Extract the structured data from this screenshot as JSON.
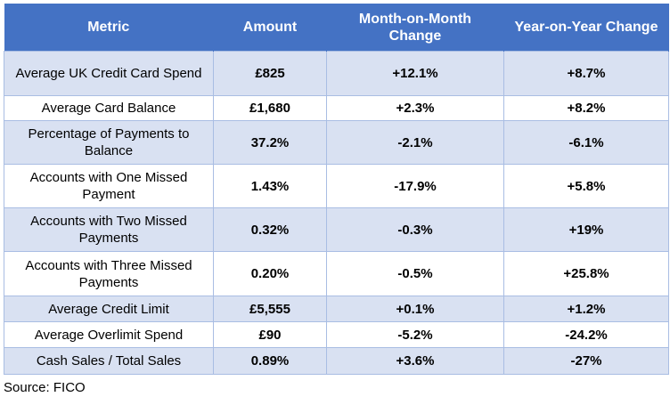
{
  "table": {
    "headers": [
      "Metric",
      "Amount",
      "Month-on-Month Change",
      "Year-on-Year Change"
    ],
    "rows": [
      [
        "Average UK Credit Card Spend",
        "£825",
        "+12.1%",
        "+8.7%"
      ],
      [
        "Average Card Balance",
        "£1,680",
        "+2.3%",
        "+8.2%"
      ],
      [
        "Percentage of Payments to Balance",
        "37.2%",
        "-2.1%",
        "-6.1%"
      ],
      [
        "Accounts with One Missed Payment",
        "1.43%",
        "-17.9%",
        "+5.8%"
      ],
      [
        "Accounts with Two Missed Payments",
        "0.32%",
        "-0.3%",
        "+19%"
      ],
      [
        "Accounts with Three Missed Payments",
        "0.20%",
        "-0.5%",
        "+25.8%"
      ],
      [
        "Average Credit Limit",
        "£5,555",
        "+0.1%",
        "+1.2%"
      ],
      [
        "Average Overlimit Spend",
        "£90",
        "-5.2%",
        "-24.2%"
      ],
      [
        "Cash Sales / Total Sales",
        "0.89%",
        "+3.6%",
        "-27%"
      ]
    ]
  },
  "source": "Source: FICO",
  "colors": {
    "header": "#4472C4",
    "row_alt": "#D9E1F2"
  }
}
